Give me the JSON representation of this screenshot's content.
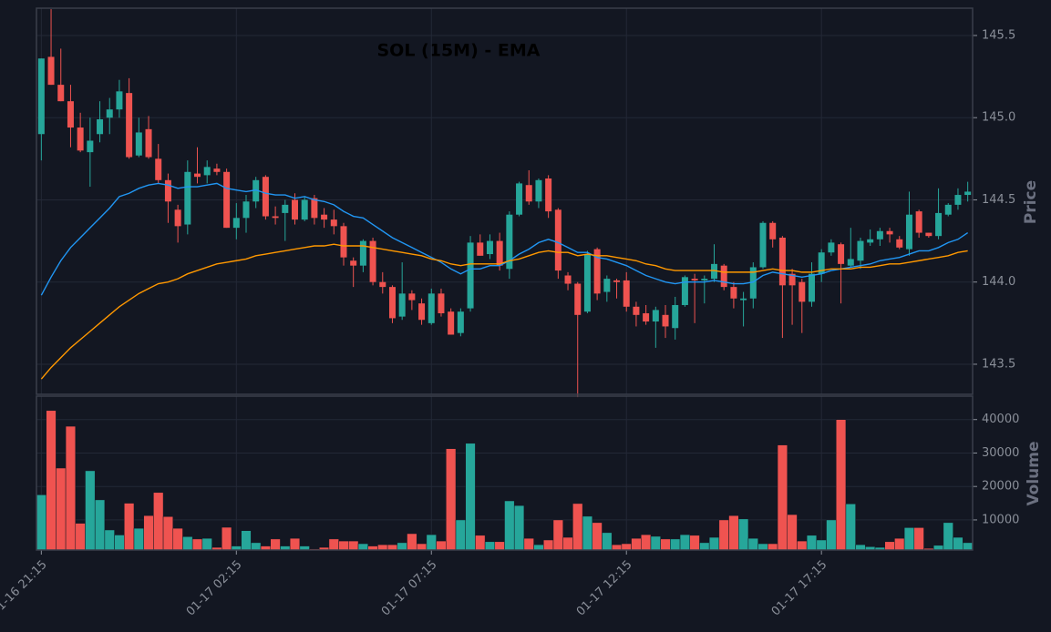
{
  "chart_data": {
    "type": "candlestick",
    "title": "SOL (15M) - EMA",
    "x": [
      "01-16 21:15",
      null,
      null,
      null,
      null,
      null,
      null,
      null,
      null,
      null,
      null,
      null,
      null,
      null,
      null,
      null,
      null,
      null,
      null,
      null,
      "01-17 02:15",
      null,
      null,
      null,
      null,
      null,
      null,
      null,
      null,
      null,
      null,
      null,
      null,
      null,
      null,
      null,
      null,
      null,
      null,
      null,
      "01-17 07:15",
      null,
      null,
      null,
      null,
      null,
      null,
      null,
      null,
      null,
      null,
      null,
      null,
      null,
      null,
      null,
      null,
      null,
      null,
      null,
      "01-17 12:15",
      null,
      null,
      null,
      null,
      null,
      null,
      null,
      null,
      null,
      null,
      null,
      null,
      null,
      null,
      null,
      null,
      null,
      null,
      null,
      "01-17 17:15",
      null,
      null,
      null,
      null,
      null,
      null,
      null,
      null,
      null,
      null,
      null,
      null,
      null,
      null,
      null
    ],
    "open": [
      144.9,
      145.37,
      145.2,
      145.1,
      144.94,
      144.79,
      144.9,
      145.0,
      145.05,
      145.15,
      144.77,
      144.93,
      144.75,
      144.62,
      144.44,
      144.35,
      144.66,
      144.65,
      144.69,
      144.67,
      144.33,
      144.39,
      144.49,
      144.64,
      144.4,
      144.42,
      144.5,
      144.38,
      144.51,
      144.41,
      144.38,
      144.34,
      144.13,
      144.1,
      144.25,
      144.0,
      143.97,
      143.79,
      143.93,
      143.87,
      143.75,
      143.93,
      143.82,
      143.69,
      143.84,
      144.24,
      144.17,
      144.25,
      144.08,
      144.41,
      144.59,
      144.49,
      144.63,
      144.44,
      144.04,
      143.99,
      143.82,
      144.2,
      143.94,
      144.01,
      144.01,
      143.85,
      143.81,
      143.76,
      143.8,
      143.72,
      143.86,
      144.02,
      144.01,
      144.02,
      144.1,
      143.97,
      143.89,
      143.9,
      144.09,
      144.36,
      144.27,
      144.05,
      144.0,
      143.88,
      144.05,
      144.18,
      144.23,
      144.1,
      144.13,
      144.24,
      144.26,
      144.31,
      144.26,
      144.2,
      144.43,
      144.3,
      144.28,
      144.41,
      144.47,
      144.53
    ],
    "high": [
      145.36,
      145.66,
      145.42,
      145.2,
      145.03,
      145.0,
      145.1,
      145.12,
      145.23,
      145.24,
      145.0,
      145.01,
      144.84,
      144.66,
      144.47,
      144.74,
      144.82,
      144.74,
      144.72,
      144.69,
      144.48,
      144.53,
      144.64,
      144.65,
      144.46,
      144.5,
      144.54,
      144.52,
      144.53,
      144.45,
      144.44,
      144.36,
      144.15,
      144.26,
      144.27,
      144.06,
      143.98,
      144.12,
      143.95,
      143.9,
      143.96,
      143.96,
      143.84,
      143.84,
      144.28,
      144.29,
      144.29,
      144.3,
      144.43,
      144.61,
      144.68,
      144.63,
      144.65,
      144.45,
      144.06,
      144.0,
      144.19,
      144.21,
      144.04,
      144.02,
      144.06,
      143.88,
      143.86,
      143.85,
      143.86,
      143.91,
      144.04,
      144.05,
      144.04,
      144.23,
      144.11,
      144.0,
      143.94,
      144.12,
      144.37,
      144.37,
      144.28,
      144.08,
      144.02,
      144.12,
      144.2,
      144.26,
      144.24,
      144.33,
      144.27,
      144.32,
      144.33,
      144.33,
      144.28,
      144.55,
      144.44,
      144.3,
      144.57,
      144.48,
      144.57,
      144.61
    ],
    "low": [
      144.74,
      145.2,
      145.1,
      144.82,
      144.79,
      144.58,
      144.85,
      144.9,
      145.0,
      144.75,
      144.76,
      144.75,
      144.6,
      144.36,
      144.24,
      144.29,
      144.6,
      144.6,
      144.65,
      144.33,
      144.26,
      144.3,
      144.45,
      144.38,
      144.35,
      144.25,
      144.35,
      144.37,
      144.35,
      144.33,
      144.29,
      144.1,
      143.97,
      144.06,
      143.98,
      143.93,
      143.75,
      143.77,
      143.83,
      143.74,
      143.74,
      143.79,
      143.68,
      143.67,
      143.82,
      144.16,
      144.14,
      144.07,
      144.02,
      144.4,
      144.47,
      144.45,
      144.39,
      144.02,
      143.95,
      143.3,
      143.81,
      143.89,
      143.88,
      143.9,
      143.82,
      143.73,
      143.74,
      143.6,
      143.66,
      143.65,
      143.85,
      143.75,
      143.87,
      144.0,
      143.95,
      143.84,
      143.73,
      143.84,
      144.08,
      144.21,
      143.66,
      143.74,
      143.69,
      143.85,
      144.0,
      144.16,
      143.87,
      144.09,
      144.08,
      144.22,
      144.22,
      144.24,
      144.2,
      144.16,
      144.27,
      144.27,
      144.26,
      144.4,
      144.44,
      144.49
    ],
    "close": [
      145.36,
      145.2,
      145.1,
      144.94,
      144.8,
      144.86,
      144.99,
      145.05,
      145.16,
      144.76,
      144.91,
      144.76,
      144.62,
      144.49,
      144.34,
      144.67,
      144.64,
      144.7,
      144.67,
      144.33,
      144.39,
      144.49,
      144.62,
      144.4,
      144.39,
      144.47,
      144.38,
      144.5,
      144.39,
      144.38,
      144.34,
      144.15,
      144.1,
      144.25,
      144.0,
      143.97,
      143.78,
      143.93,
      143.89,
      143.77,
      143.93,
      143.81,
      143.68,
      143.82,
      144.24,
      144.16,
      144.25,
      144.1,
      144.41,
      144.6,
      144.49,
      144.62,
      144.43,
      144.07,
      143.99,
      143.8,
      144.17,
      143.93,
      144.02,
      144.0,
      143.85,
      143.8,
      143.76,
      143.83,
      143.73,
      143.86,
      144.03,
      144.01,
      144.02,
      144.11,
      143.97,
      143.9,
      143.9,
      144.09,
      144.36,
      144.26,
      143.98,
      143.98,
      143.88,
      144.05,
      144.18,
      144.24,
      144.11,
      144.14,
      144.25,
      144.26,
      144.31,
      144.29,
      144.21,
      144.41,
      144.3,
      144.28,
      144.42,
      144.47,
      144.53,
      144.55
    ],
    "up_color": "#26a69a",
    "down_color": "#ef5350",
    "ylabel": "Price",
    "ylim": [
      143.317,
      145.666
    ],
    "yticks": [
      143.5,
      {
        "value": 144,
        "label": "144.0"
      },
      144.5,
      {
        "value": 145,
        "label": "145.0"
      },
      145.5
    ],
    "grid": true,
    "ema": [
      {
        "color": "#2196f3",
        "values": [
          143.92,
          144.03,
          144.13,
          144.21,
          144.27,
          144.33,
          144.39,
          144.45,
          144.52,
          144.54,
          144.57,
          144.59,
          144.6,
          144.59,
          144.57,
          144.58,
          144.58,
          144.59,
          144.6,
          144.57,
          144.56,
          144.55,
          144.56,
          144.54,
          144.53,
          144.53,
          144.51,
          144.52,
          144.5,
          144.49,
          144.47,
          144.43,
          144.4,
          144.39,
          144.35,
          144.31,
          144.27,
          144.24,
          144.21,
          144.18,
          144.15,
          144.12,
          144.08,
          144.05,
          144.08,
          144.08,
          144.1,
          144.1,
          144.13,
          144.17,
          144.2,
          144.24,
          144.26,
          144.24,
          144.21,
          144.18,
          144.18,
          144.15,
          144.14,
          144.12,
          144.1,
          144.07,
          144.04,
          144.02,
          144.0,
          143.99,
          144.0,
          144.0,
          144.0,
          144.01,
          144.0,
          143.99,
          143.99,
          144.0,
          144.04,
          144.06,
          144.05,
          144.04,
          144.03,
          144.04,
          144.05,
          144.07,
          144.08,
          144.09,
          144.1,
          144.11,
          144.13,
          144.14,
          144.15,
          144.17,
          144.19,
          144.19,
          144.21,
          144.24,
          144.26,
          144.3
        ]
      },
      {
        "color": "#ff9800",
        "values": [
          143.41,
          143.48,
          143.54,
          143.6,
          143.65,
          143.7,
          143.75,
          143.8,
          143.85,
          143.89,
          143.93,
          143.96,
          143.99,
          144.0,
          144.02,
          144.05,
          144.07,
          144.09,
          144.11,
          144.12,
          144.13,
          144.14,
          144.16,
          144.17,
          144.18,
          144.19,
          144.2,
          144.21,
          144.22,
          144.22,
          144.23,
          144.22,
          144.22,
          144.22,
          144.21,
          144.2,
          144.19,
          144.18,
          144.17,
          144.16,
          144.14,
          144.13,
          144.11,
          144.1,
          144.11,
          144.11,
          144.11,
          144.11,
          144.13,
          144.14,
          144.16,
          144.18,
          144.19,
          144.18,
          144.18,
          144.16,
          144.17,
          144.16,
          144.16,
          144.15,
          144.14,
          144.13,
          144.11,
          144.1,
          144.08,
          144.07,
          144.07,
          144.07,
          144.07,
          144.07,
          144.06,
          144.06,
          144.06,
          144.06,
          144.07,
          144.08,
          144.07,
          144.07,
          144.06,
          144.06,
          144.07,
          144.08,
          144.08,
          144.08,
          144.09,
          144.09,
          144.1,
          144.11,
          144.11,
          144.12,
          144.13,
          144.14,
          144.15,
          144.16,
          144.18,
          144.19
        ]
      }
    ],
    "volume": {
      "ylabel": "Volume",
      "ylim": [
        1000,
        47000
      ],
      "yticks": [
        10000,
        20000,
        30000,
        40000
      ],
      "values": [
        17500,
        42700,
        25500,
        38000,
        9000,
        24700,
        16000,
        7000,
        5500,
        15000,
        7500,
        11300,
        18200,
        11000,
        7500,
        5000,
        4300,
        4500,
        1800,
        7800,
        2200,
        6800,
        3200,
        2200,
        4300,
        2200,
        4500,
        2200,
        1300,
        1800,
        4300,
        3700,
        3700,
        2900,
        2200,
        2600,
        2600,
        3200,
        5900,
        2900,
        5600,
        3700,
        31300,
        10000,
        32900,
        5400,
        3500,
        3500,
        15700,
        14300,
        4500,
        2600,
        4000,
        10000,
        4800,
        14900,
        11100,
        9200,
        6200,
        2600,
        2900,
        4500,
        5600,
        5100,
        4300,
        4300,
        5600,
        5400,
        3200,
        4800,
        10000,
        11300,
        10300,
        4500,
        2900,
        2900,
        32400,
        11600,
        3700,
        5400,
        4000,
        10000,
        40000,
        14800,
        2600,
        2000,
        1800,
        3500,
        4500,
        7700,
        7700,
        1500,
        2400,
        9200,
        4800,
        3200
      ]
    }
  }
}
